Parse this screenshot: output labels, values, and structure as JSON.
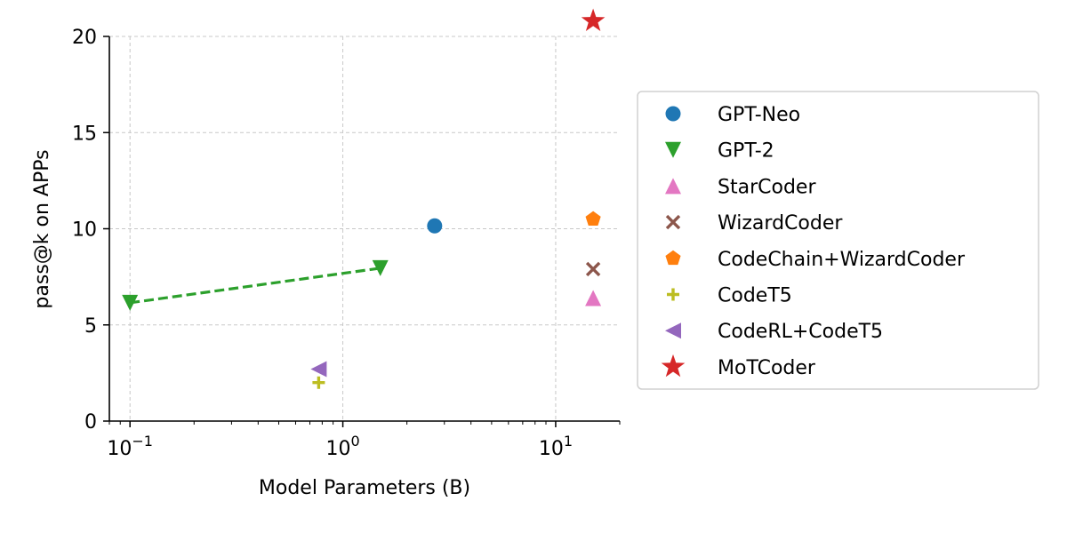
{
  "chart_data": {
    "type": "scatter",
    "title": "",
    "xlabel": "Model Parameters (B)",
    "ylabel": "pass@k on APPs",
    "x_scale": "log",
    "xlim": [
      0.08,
      20
    ],
    "ylim": [
      0,
      20
    ],
    "x_ticks": [
      {
        "value": 0.1,
        "base": "10",
        "exp": "−1"
      },
      {
        "value": 1,
        "base": "10",
        "exp": "0"
      },
      {
        "value": 10,
        "base": "10",
        "exp": "1"
      }
    ],
    "y_ticks": [
      0,
      5,
      10,
      15,
      20
    ],
    "grid": true,
    "legend_position": "right",
    "series": [
      {
        "name": "GPT-Neo",
        "marker": "circle",
        "color": "#1f77b4",
        "points": [
          {
            "x": 2.7,
            "y": 10.15
          }
        ]
      },
      {
        "name": "GPT-2",
        "marker": "triangle-down",
        "color": "#2ca02c",
        "points": [
          {
            "x": 0.1,
            "y": 6.15
          },
          {
            "x": 1.5,
            "y": 7.95
          }
        ],
        "connect": "dashed"
      },
      {
        "name": "StarCoder",
        "marker": "triangle-up",
        "color": "#e377c2",
        "points": [
          {
            "x": 15,
            "y": 6.4
          }
        ]
      },
      {
        "name": "WizardCoder",
        "marker": "x",
        "color": "#8c564b",
        "points": [
          {
            "x": 15,
            "y": 7.9
          }
        ]
      },
      {
        "name": "CodeChain+WizardCoder",
        "marker": "pentagon",
        "color": "#ff7f0e",
        "points": [
          {
            "x": 15,
            "y": 10.5
          }
        ]
      },
      {
        "name": "CodeT5",
        "marker": "plus",
        "color": "#bcbd22",
        "points": [
          {
            "x": 0.77,
            "y": 2.0
          }
        ]
      },
      {
        "name": "CodeRL+CodeT5",
        "marker": "triangle-left",
        "color": "#9467bd",
        "points": [
          {
            "x": 0.77,
            "y": 2.7
          }
        ]
      },
      {
        "name": "MoTCoder",
        "marker": "star",
        "color": "#d62728",
        "points": [
          {
            "x": 15,
            "y": 20.8
          }
        ]
      }
    ]
  }
}
